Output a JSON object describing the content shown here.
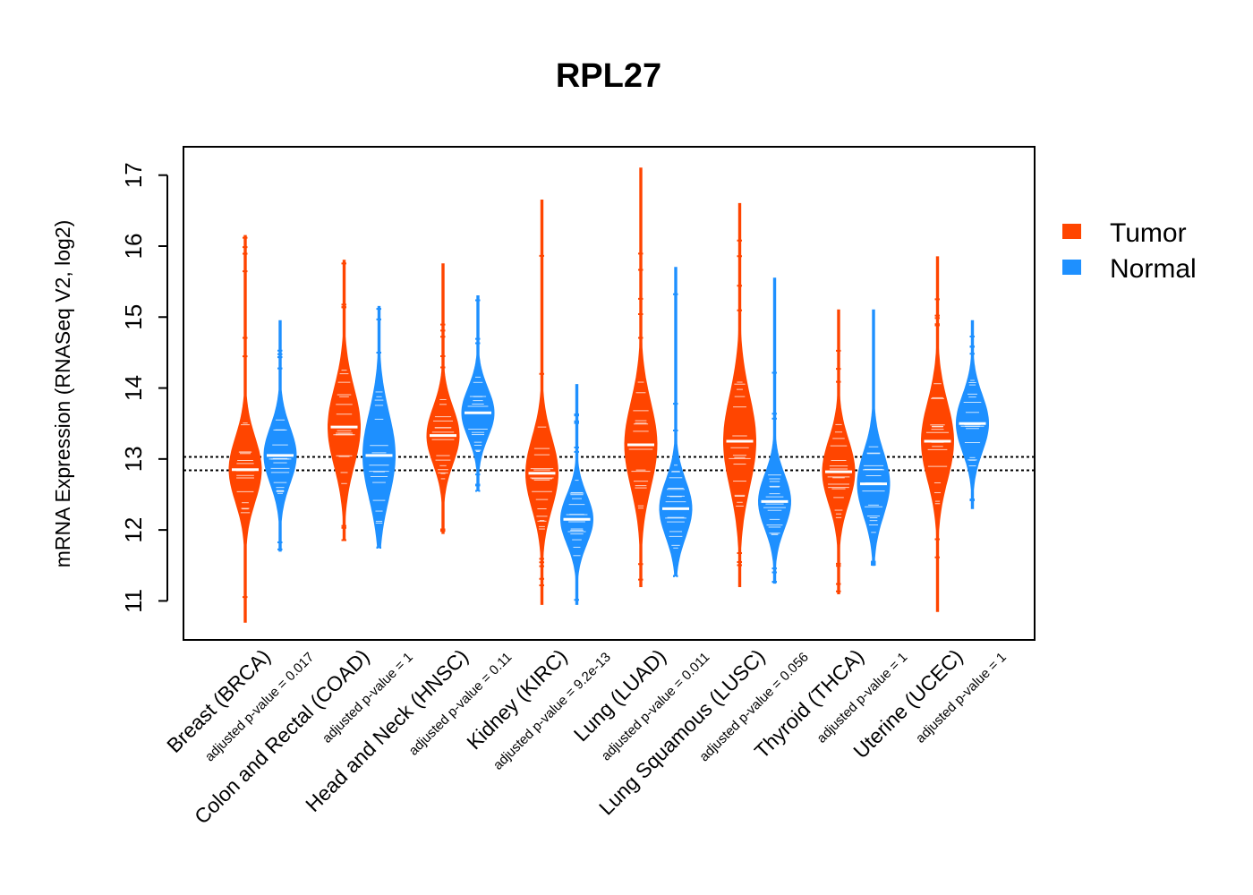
{
  "chart_data": {
    "type": "violin",
    "title": "RPL27",
    "ylabel": "mRNA Expression (RNASeq V2, log2)",
    "xlabel": "",
    "ylim": [
      10.45,
      17.4
    ],
    "yticks": [
      "11",
      "12",
      "13",
      "14",
      "15",
      "16",
      "17"
    ],
    "reference_lines": [
      12.84,
      13.03
    ],
    "legend": {
      "position": "right",
      "items": [
        "Tumor",
        "Normal"
      ]
    },
    "colors": {
      "Tumor": "#FF4500",
      "Normal": "#1E90FF"
    },
    "categories": [
      {
        "name": "Breast (BRCA)",
        "pvalue": "adjusted p-value = 0.017"
      },
      {
        "name": "Colon and Rectal (COAD)",
        "pvalue": "adjusted p-value = 1"
      },
      {
        "name": "Head and Neck (HNSC)",
        "pvalue": "adjusted p-value = 0.11"
      },
      {
        "name": "Kidney (KIRC)",
        "pvalue": "adjusted p-value = 9.2e-13"
      },
      {
        "name": "Lung (LUAD)",
        "pvalue": "adjusted p-value = 0.011"
      },
      {
        "name": "Lung Squamous (LUSC)",
        "pvalue": "adjusted p-value = 0.056"
      },
      {
        "name": "Thyroid (THCA)",
        "pvalue": "adjusted p-value = 1"
      },
      {
        "name": "Uterine (UCEC)",
        "pvalue": "adjusted p-value = 1"
      }
    ],
    "series": [
      {
        "name": "Tumor",
        "median": [
          12.85,
          13.45,
          13.33,
          12.8,
          13.2,
          13.25,
          12.82,
          13.25
        ],
        "min": [
          10.7,
          11.85,
          11.95,
          10.95,
          11.2,
          11.2,
          11.1,
          10.85
        ],
        "max": [
          16.15,
          15.8,
          15.75,
          16.65,
          17.1,
          16.6,
          15.1,
          15.85
        ],
        "spread": [
          0.45,
          0.55,
          0.4,
          0.5,
          0.6,
          0.65,
          0.45,
          0.55
        ]
      },
      {
        "name": "Normal",
        "median": [
          13.05,
          13.05,
          13.65,
          12.15,
          12.3,
          12.4,
          12.65,
          13.5
        ],
        "min": [
          11.7,
          11.75,
          12.55,
          10.95,
          11.35,
          11.25,
          11.5,
          12.3
        ],
        "max": [
          14.95,
          15.15,
          15.3,
          14.05,
          15.7,
          15.55,
          15.1,
          14.95
        ],
        "spread": [
          0.4,
          0.6,
          0.35,
          0.35,
          0.4,
          0.38,
          0.45,
          0.4
        ]
      }
    ]
  }
}
